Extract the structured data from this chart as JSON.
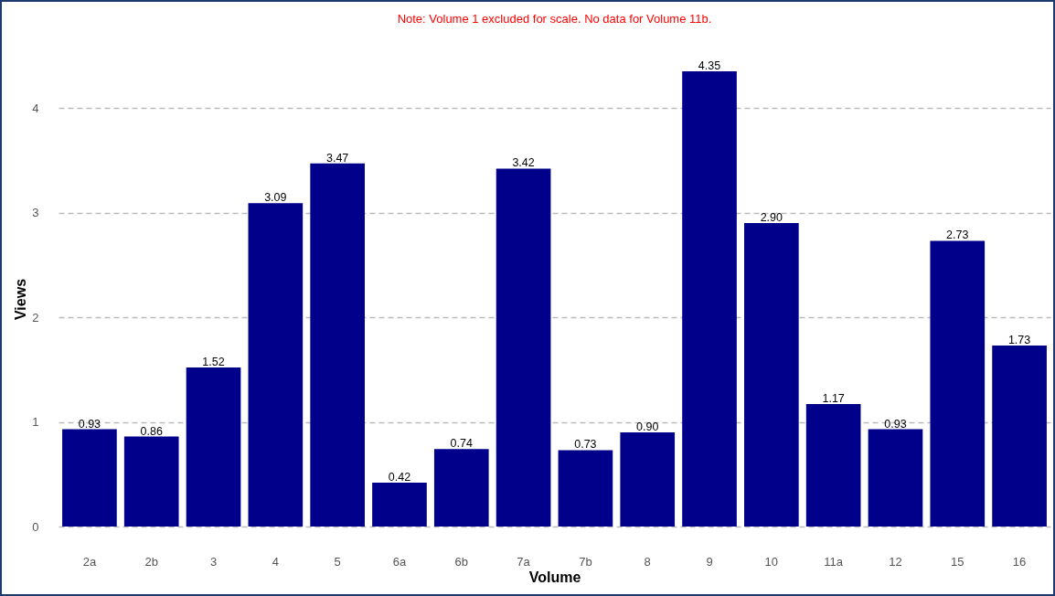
{
  "chart_data": {
    "type": "bar",
    "annotations": [
      "Note: Volume 1 excluded for scale. No data for Volume 11b."
    ],
    "xlabel": "Volume",
    "ylabel": "Views",
    "categories": [
      "2a",
      "2b",
      "3",
      "4",
      "5",
      "6a",
      "6b",
      "7a",
      "7b",
      "8",
      "9",
      "10",
      "11a",
      "12",
      "15",
      "16"
    ],
    "values": [
      0.93,
      0.86,
      1.52,
      3.09,
      3.47,
      0.42,
      0.74,
      3.42,
      0.73,
      0.9,
      4.35,
      2.9,
      1.17,
      0.93,
      2.73,
      1.73
    ],
    "value_labels": [
      "0.93",
      "0.86",
      "1.52",
      "3.09",
      "3.47",
      "0.42",
      "0.74",
      "3.42",
      "0.73",
      "0.90",
      "4.35",
      "2.90",
      "1.17",
      "0.93",
      "2.73",
      "1.73"
    ],
    "color": "#00008b",
    "ylim": [
      0,
      4.35
    ],
    "yticks": [
      0,
      1,
      2,
      3,
      4
    ],
    "grid": "y"
  }
}
